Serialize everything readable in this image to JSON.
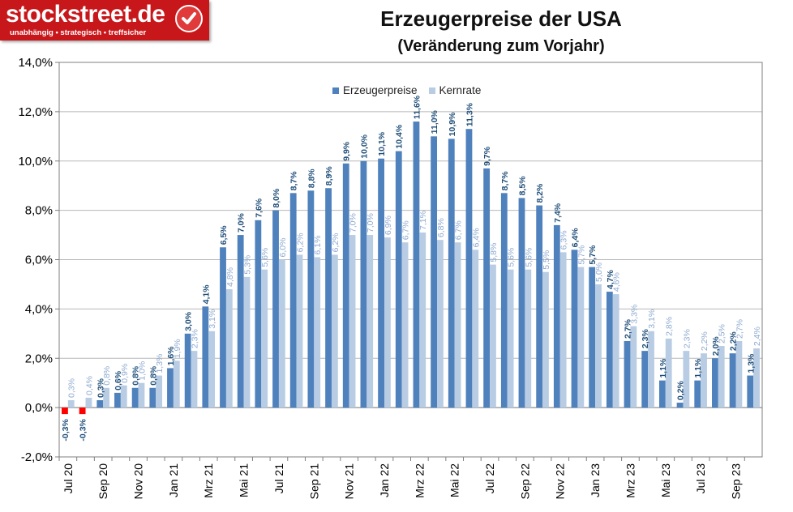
{
  "brand": {
    "name": "stockstreet.de",
    "tagline": "unabhängig • strategisch • treffsicher",
    "color": "#c8171b"
  },
  "chart_data": {
    "type": "bar",
    "title": "Erzeugerpreise der USA",
    "subtitle": "(Veränderung zum Vorjahr)",
    "xlabel": "",
    "ylabel": "",
    "ylim": [
      -2,
      14
    ],
    "yticks": [
      "-2,0%",
      "0,0%",
      "2,0%",
      "4,0%",
      "6,0%",
      "8,0%",
      "10,0%",
      "12,0%",
      "14,0%"
    ],
    "grid": true,
    "legend": "top-center",
    "categories": [
      "Jul 20",
      "Aug 20",
      "Sep 20",
      "Okt 20",
      "Nov 20",
      "Dez 20",
      "Jan 21",
      "Feb 21",
      "Mrz 21",
      "Apr 21",
      "Mai 21",
      "Jun 21",
      "Jul 21",
      "Aug 21",
      "Sep 21",
      "Okt 21",
      "Nov 21",
      "Dez 21",
      "Jan 22",
      "Feb 22",
      "Mrz 22",
      "Apr 22",
      "Mai 22",
      "Jun 22",
      "Jul 22",
      "Aug 22",
      "Sep 22",
      "Okt 22",
      "Nov 22",
      "Dez 22",
      "Jan 23",
      "Feb 23",
      "Mrz 23",
      "Apr 23",
      "Mai 23",
      "Jun 23",
      "Jul 23",
      "Aug 23",
      "Sep 23",
      "Okt 23"
    ],
    "x_tick_labels": [
      "Jul 20",
      "",
      "Sep 20",
      "",
      "Nov 20",
      "",
      "Jan 21",
      "",
      "Mrz 21",
      "",
      "Mai 21",
      "",
      "Jul 21",
      "",
      "Sep 21",
      "",
      "Nov 21",
      "",
      "Jan 22",
      "",
      "Mrz 22",
      "",
      "Mai 22",
      "",
      "Jul 22",
      "",
      "Sep 22",
      "",
      "Nov 22",
      "",
      "Jan 23",
      "",
      "Mrz 23",
      "",
      "Mai 23",
      "",
      "Jul 23",
      "",
      "Sep 23",
      ""
    ],
    "series": [
      {
        "name": "Erzeugerpreise",
        "color": "#4f81bd",
        "label_color": "#1f4e79",
        "values": [
          -0.3,
          -0.3,
          0.3,
          0.6,
          0.8,
          0.8,
          1.6,
          3.0,
          4.1,
          6.5,
          7.0,
          7.6,
          8.0,
          8.7,
          8.8,
          8.9,
          9.9,
          10.0,
          10.1,
          10.4,
          11.6,
          11.0,
          10.9,
          11.3,
          9.7,
          8.7,
          8.5,
          8.2,
          7.4,
          6.4,
          5.7,
          4.7,
          2.7,
          2.3,
          1.1,
          0.2,
          1.1,
          2.0,
          2.2,
          1.3
        ],
        "labels": [
          "-0,3%",
          "-0,3%",
          "0,3%",
          "0,6%",
          "0,8%",
          "0,8%",
          "1,6%",
          "3,0%",
          "4,1%",
          "6,5%",
          "7,0%",
          "7,6%",
          "8,0%",
          "8,7%",
          "8,8%",
          "8,9%",
          "9,9%",
          "10,0%",
          "10,1%",
          "10,4%",
          "11,6%",
          "11,0%",
          "10,9%",
          "11,3%",
          "9,7%",
          "8,7%",
          "8,5%",
          "8,2%",
          "7,4%",
          "6,4%",
          "5,7%",
          "4,7%",
          "2,7%",
          "2,3%",
          "1,1%",
          "0,2%",
          "1,1%",
          "2,0%",
          "2,2%",
          "1,3%"
        ]
      },
      {
        "name": "Kernrate",
        "color": "#b8cce4",
        "label_color": "#8eaad0",
        "values": [
          0.3,
          0.4,
          0.8,
          0.9,
          1.0,
          1.3,
          1.9,
          2.3,
          3.1,
          4.8,
          5.3,
          5.6,
          6.0,
          6.2,
          6.1,
          6.2,
          7.0,
          7.0,
          6.9,
          6.7,
          7.1,
          6.8,
          6.7,
          6.4,
          5.8,
          5.6,
          5.6,
          5.5,
          6.3,
          5.7,
          5.0,
          4.6,
          3.3,
          3.1,
          2.8,
          2.3,
          2.2,
          2.5,
          2.7,
          2.4
        ],
        "labels": [
          "0,3%",
          "0,4%",
          "0,8%",
          "0,9%",
          "1,0%",
          "1,3%",
          "1,9%",
          "2,3%",
          "3,1%",
          "4,8%",
          "5,3%",
          "5,6%",
          "6,0%",
          "6,2%",
          "6,1%",
          "6,2%",
          "7,0%",
          "7,0%",
          "6,9%",
          "6,7%",
          "7,1%",
          "6,8%",
          "6,7%",
          "6,4%",
          "5,8%",
          "5,6%",
          "5,6%",
          "5,5%",
          "6,3%",
          "5,7%",
          "5,0%",
          "4,6%",
          "3,3%",
          "3,1%",
          "2,8%",
          "2,3%",
          "2,2%",
          "2,5%",
          "2,7%",
          "2,4%"
        ]
      }
    ],
    "negative_marker_color": "#ff0000"
  }
}
